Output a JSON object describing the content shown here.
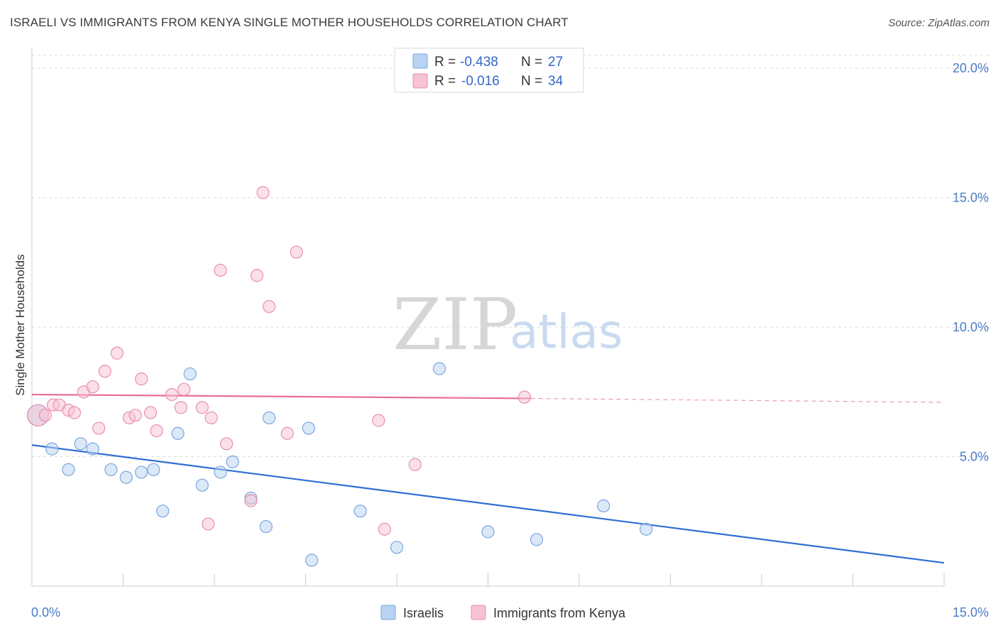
{
  "header": {
    "title": "ISRAELI VS IMMIGRANTS FROM KENYA SINGLE MOTHER HOUSEHOLDS CORRELATION CHART",
    "source": "Source: ZipAtlas.com"
  },
  "watermark": {
    "zip": "ZIP",
    "atlas": "atlas"
  },
  "colors": {
    "blue_fill": "#b8d2f1",
    "blue_stroke": "#7aa6dc",
    "blue_line": "#2f6fd3",
    "pink_fill": "#f7c2d2",
    "pink_stroke": "#e890ad",
    "pink_line": "#e7709a",
    "grid": "#dddddd",
    "tick_label": "#4a7cc7"
  },
  "legend": {
    "rows": [
      {
        "r_label": "R =",
        "r_value": "-0.438",
        "n_label": "N =",
        "n_value": "27",
        "swatch": "blue"
      },
      {
        "r_label": "R =",
        "r_value": "-0.016",
        "n_label": "N =",
        "n_value": "34",
        "swatch": "pink"
      }
    ]
  },
  "bottom_legend": [
    {
      "label": "Israelis",
      "swatch": "blue"
    },
    {
      "label": "Immigrants from Kenya",
      "swatch": "pink"
    }
  ],
  "chart_data": {
    "type": "scatter",
    "title": "ISRAELI VS IMMIGRANTS FROM KENYA SINGLE MOTHER HOUSEHOLDS CORRELATION CHART",
    "xlabel": "",
    "ylabel": "Single Mother Households",
    "xlim": [
      0,
      15
    ],
    "ylim": [
      0,
      20.5
    ],
    "x_tick_labels": [
      "0.0%",
      "15.0%"
    ],
    "y_ticks": [
      5,
      10,
      15,
      20
    ],
    "y_tick_labels": [
      "5.0%",
      "10.0%",
      "15.0%",
      "20.0%"
    ],
    "grid": "horizontal dashed",
    "legend_placement": "top-center",
    "series": [
      {
        "name": "Israelis",
        "color": "blue",
        "points": [
          [
            0.1,
            6.6
          ],
          [
            0.33,
            5.3
          ],
          [
            0.6,
            4.5
          ],
          [
            0.8,
            5.5
          ],
          [
            1.0,
            5.3
          ],
          [
            1.3,
            4.5
          ],
          [
            1.55,
            4.2
          ],
          [
            1.8,
            4.4
          ],
          [
            2.0,
            4.5
          ],
          [
            2.15,
            2.9
          ],
          [
            2.4,
            5.9
          ],
          [
            2.6,
            8.2
          ],
          [
            2.8,
            3.9
          ],
          [
            3.1,
            4.4
          ],
          [
            3.3,
            4.8
          ],
          [
            3.6,
            3.4
          ],
          [
            3.85,
            2.3
          ],
          [
            3.9,
            6.5
          ],
          [
            4.55,
            6.1
          ],
          [
            4.6,
            1.0
          ],
          [
            5.4,
            2.9
          ],
          [
            6.0,
            1.5
          ],
          [
            6.7,
            8.4
          ],
          [
            7.5,
            2.1
          ],
          [
            8.3,
            1.8
          ],
          [
            9.4,
            3.1
          ],
          [
            10.1,
            2.2
          ]
        ],
        "trend": {
          "x": [
            0,
            15
          ],
          "y": [
            5.45,
            0.9
          ]
        }
      },
      {
        "name": "Immigrants from Kenya",
        "color": "pink",
        "points": [
          [
            0.1,
            6.6
          ],
          [
            0.22,
            6.6
          ],
          [
            0.35,
            7.0
          ],
          [
            0.45,
            7.0
          ],
          [
            0.6,
            6.8
          ],
          [
            0.7,
            6.7
          ],
          [
            0.85,
            7.5
          ],
          [
            1.0,
            7.7
          ],
          [
            1.1,
            6.1
          ],
          [
            1.2,
            8.3
          ],
          [
            1.4,
            9.0
          ],
          [
            1.6,
            6.5
          ],
          [
            1.7,
            6.6
          ],
          [
            1.8,
            8.0
          ],
          [
            1.95,
            6.7
          ],
          [
            2.05,
            6.0
          ],
          [
            2.3,
            7.4
          ],
          [
            2.45,
            6.9
          ],
          [
            2.5,
            7.6
          ],
          [
            2.8,
            6.9
          ],
          [
            2.9,
            2.4
          ],
          [
            2.95,
            6.5
          ],
          [
            3.1,
            12.2
          ],
          [
            3.2,
            5.5
          ],
          [
            3.6,
            3.3
          ],
          [
            3.7,
            12.0
          ],
          [
            3.8,
            15.2
          ],
          [
            3.9,
            10.8
          ],
          [
            4.2,
            5.9
          ],
          [
            4.35,
            12.9
          ],
          [
            5.7,
            6.4
          ],
          [
            5.8,
            2.2
          ],
          [
            6.3,
            4.7
          ],
          [
            8.1,
            7.3
          ]
        ],
        "trend": {
          "x": [
            0,
            8.2
          ],
          "y": [
            7.4,
            7.25
          ]
        },
        "trend_extension": {
          "x": [
            8.2,
            15
          ],
          "y": [
            7.25,
            7.1
          ]
        }
      }
    ]
  }
}
